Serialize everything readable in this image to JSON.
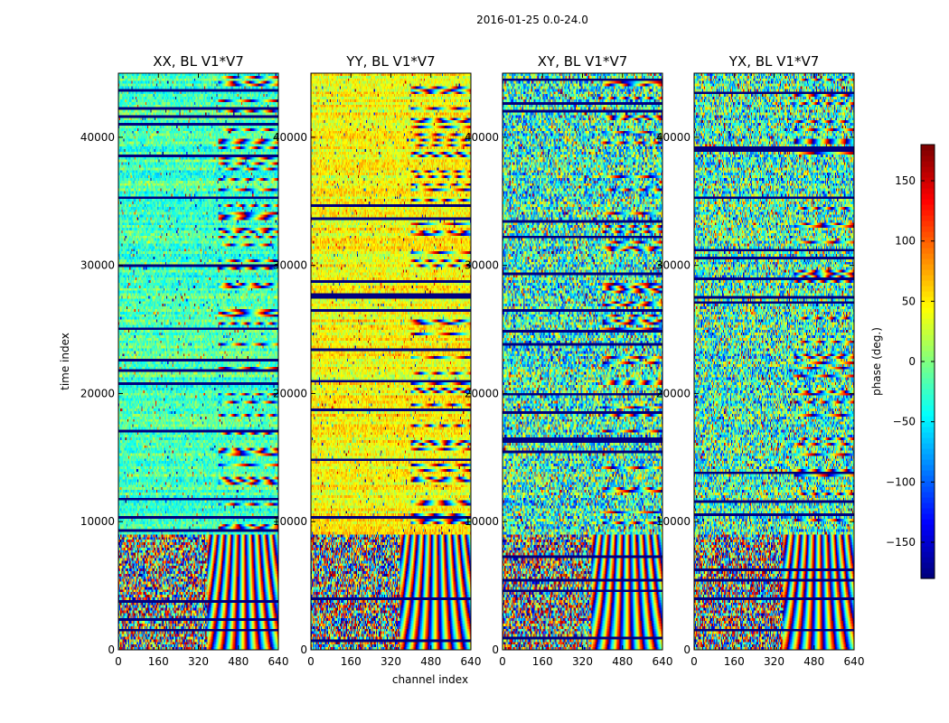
{
  "chart_data": {
    "type": "heatmap",
    "suptitle": "2016-01-25 0.0-24.0",
    "xlabel": "channel index",
    "ylabel": "time index",
    "colorbar_label": "phase (deg.)",
    "x_range": [
      0,
      640
    ],
    "y_range": [
      0,
      45000
    ],
    "x_ticks": [
      "0",
      "160",
      "320",
      "480",
      "640"
    ],
    "y_ticks": [
      "0",
      "10000",
      "20000",
      "30000",
      "40000"
    ],
    "colorbar_range": [
      -180,
      180
    ],
    "colorbar_ticks": [
      "−150",
      "−100",
      "−50",
      "0",
      "50",
      "100",
      "150"
    ],
    "colormap": "jet",
    "panels": [
      {
        "title": "XX, BL V1*V7",
        "base_phase_deg": -20,
        "noise_deg": 35
      },
      {
        "title": "YY, BL V1*V7",
        "base_phase_deg": 45,
        "noise_deg": 30
      },
      {
        "title": "XY, BL V1*V7",
        "base_phase_deg": -30,
        "noise_deg": 90
      },
      {
        "title": "YX, BL V1*V7",
        "base_phase_deg": -25,
        "noise_deg": 90
      }
    ]
  },
  "colors": {
    "background": "#ffffff",
    "frame": "#000000",
    "flagged_row": "#00007f"
  }
}
